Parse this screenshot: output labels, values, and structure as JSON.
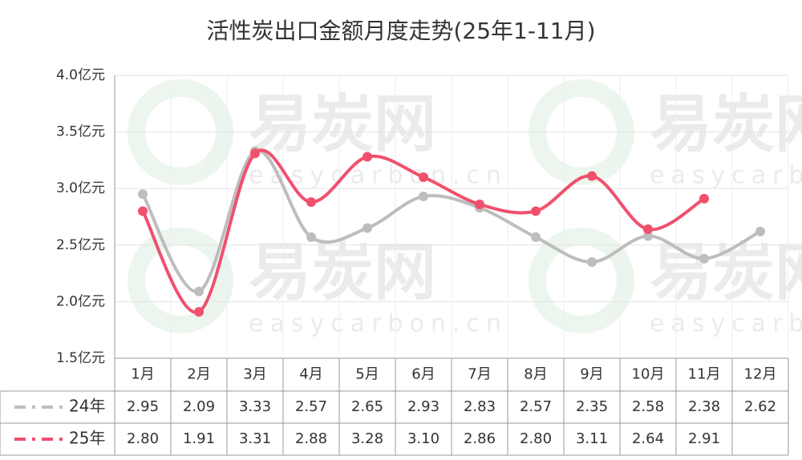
{
  "chart_data": {
    "type": "line",
    "title": "活性炭出口金额月度走势(25年1-11月)",
    "watermark": {
      "name": "易炭网",
      "url": "easycarbon.cn"
    },
    "categories": [
      "1月",
      "2月",
      "3月",
      "4月",
      "5月",
      "6月",
      "7月",
      "8月",
      "9月",
      "10月",
      "11月",
      "12月"
    ],
    "series": [
      {
        "name": "24年",
        "color": "#bdbdbd",
        "values": [
          2.95,
          2.09,
          3.33,
          2.57,
          2.65,
          2.93,
          2.83,
          2.57,
          2.35,
          2.58,
          2.38,
          2.62
        ],
        "value_labels": [
          "2.95",
          "2.09",
          "3.33",
          "2.57",
          "2.65",
          "2.93",
          "2.83",
          "2.57",
          "2.35",
          "2.58",
          "2.38",
          "2.62"
        ]
      },
      {
        "name": "25年",
        "color": "#f0506e",
        "values": [
          2.8,
          1.91,
          3.31,
          2.88,
          3.28,
          3.1,
          2.86,
          2.8,
          3.11,
          2.64,
          2.91,
          null
        ],
        "value_labels": [
          "2.80",
          "1.91",
          "3.31",
          "2.88",
          "3.28",
          "3.10",
          "2.86",
          "2.80",
          "3.11",
          "2.64",
          "2.91",
          null
        ]
      }
    ],
    "ylim": [
      1.5,
      4.0
    ],
    "yticks": [
      {
        "value": 1.5,
        "label": "1.5亿元"
      },
      {
        "value": 2.0,
        "label": "2.0亿元"
      },
      {
        "value": 2.5,
        "label": "2.5亿元"
      },
      {
        "value": 3.0,
        "label": "3.0亿元"
      },
      {
        "value": 3.5,
        "label": "3.5亿元"
      },
      {
        "value": 4.0,
        "label": "4.0亿元"
      }
    ],
    "grid": true
  }
}
